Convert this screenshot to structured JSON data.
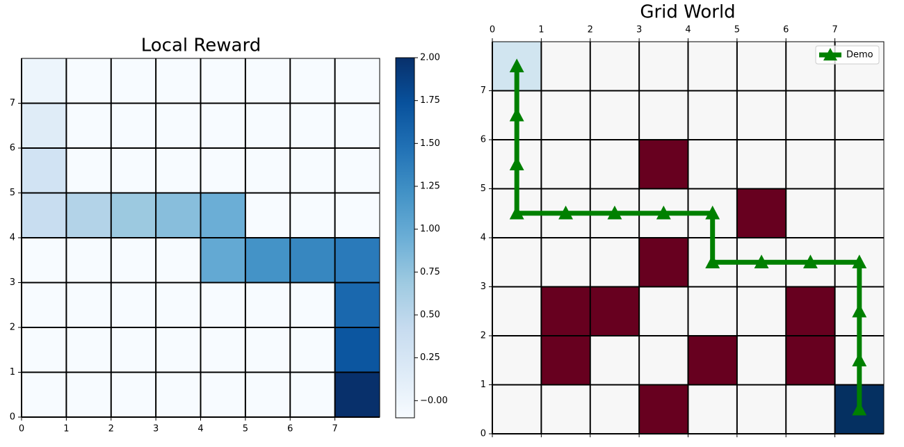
{
  "chart_data": [
    {
      "type": "heatmap",
      "title": "Local Reward",
      "xlim": [
        0,
        8
      ],
      "ylim": [
        0,
        8
      ],
      "xticks": [
        0,
        1,
        2,
        3,
        4,
        5,
        6,
        7
      ],
      "yticks": [
        0,
        1,
        2,
        3,
        4,
        5,
        6,
        7
      ],
      "xaxis_position": "bottom",
      "values": [
        [
          -0.1,
          -0.1,
          -0.1,
          -0.1,
          -0.1,
          -0.1,
          -0.1,
          2.0
        ],
        [
          -0.1,
          -0.1,
          -0.1,
          -0.1,
          -0.1,
          -0.1,
          -0.1,
          1.7
        ],
        [
          -0.1,
          -0.1,
          -0.1,
          -0.1,
          -0.1,
          -0.1,
          -0.1,
          1.55
        ],
        [
          -0.1,
          -0.1,
          -0.1,
          -0.1,
          1.0,
          1.2,
          1.3,
          1.4
        ],
        [
          0.4,
          0.55,
          0.7,
          0.8,
          0.95,
          -0.1,
          -0.1,
          -0.1
        ],
        [
          0.3,
          -0.1,
          -0.1,
          -0.1,
          -0.1,
          -0.1,
          -0.1,
          -0.1
        ],
        [
          0.15,
          -0.1,
          -0.1,
          -0.1,
          -0.1,
          -0.1,
          -0.1,
          -0.1
        ],
        [
          0.0,
          -0.1,
          -0.1,
          -0.1,
          -0.1,
          -0.1,
          -0.1,
          -0.1
        ]
      ],
      "vlim": [
        -0.1,
        2.0
      ],
      "colormap": [
        "#f7fbff",
        "#deebf7",
        "#c6dbef",
        "#9ecae1",
        "#6baed6",
        "#4292c6",
        "#2171b5",
        "#08519c",
        "#08306b"
      ],
      "colorbar": true,
      "colorbar_ticks": [
        {
          "value": 0,
          "label": "−0.00"
        },
        {
          "value": 0.25,
          "label": "0.25"
        },
        {
          "value": 0.5,
          "label": "0.50"
        },
        {
          "value": 0.75,
          "label": "0.75"
        },
        {
          "value": 1,
          "label": "1.00"
        },
        {
          "value": 1.25,
          "label": "1.25"
        },
        {
          "value": 1.5,
          "label": "1.50"
        },
        {
          "value": 1.75,
          "label": "1.75"
        },
        {
          "value": 2,
          "label": "2.00"
        }
      ],
      "grid": true
    },
    {
      "type": "heatmap",
      "title": "Grid World",
      "xlim": [
        0,
        8
      ],
      "ylim": [
        0,
        8
      ],
      "xticks": [
        0,
        1,
        2,
        3,
        4,
        5,
        6,
        7
      ],
      "yticks": [
        0,
        1,
        2,
        3,
        4,
        5,
        6,
        7
      ],
      "xaxis_position": "top",
      "values": [
        [
          0,
          0,
          0,
          -1,
          0,
          0,
          0,
          1
        ],
        [
          0,
          -1,
          0,
          0,
          -1,
          0,
          -1,
          0
        ],
        [
          0,
          -1,
          -1,
          0,
          0,
          0,
          -1,
          0
        ],
        [
          0,
          0,
          0,
          -1,
          0,
          0,
          0,
          0
        ],
        [
          0,
          0,
          0,
          0,
          0,
          -1,
          0,
          0
        ],
        [
          0,
          0,
          0,
          -1,
          0,
          0,
          0,
          0
        ],
        [
          0,
          0,
          0,
          0,
          0,
          0,
          0,
          0
        ],
        [
          0.2,
          0,
          0,
          0,
          0,
          0,
          0,
          0
        ]
      ],
      "vlim": [
        -1,
        1
      ],
      "colormap": [
        "#67001f",
        "#b2182b",
        "#d6604d",
        "#f4a582",
        "#fddbc7",
        "#f7f7f7",
        "#d1e5f0",
        "#92c5de",
        "#4393c3",
        "#2166ac",
        "#053061"
      ],
      "colorbar": false,
      "grid": true,
      "legend": "upper right",
      "series": [
        {
          "name": "Demo",
          "color": "#008000",
          "x": [
            0.5,
            0.5,
            0.5,
            0.5,
            1.5,
            2.5,
            3.5,
            4.5,
            4.5,
            5.5,
            6.5,
            7.5,
            7.5,
            7.5,
            7.5
          ],
          "y": [
            7.5,
            6.5,
            5.5,
            4.5,
            4.5,
            4.5,
            4.5,
            4.5,
            3.5,
            3.5,
            3.5,
            3.5,
            2.5,
            1.5,
            0.5
          ]
        }
      ]
    }
  ]
}
